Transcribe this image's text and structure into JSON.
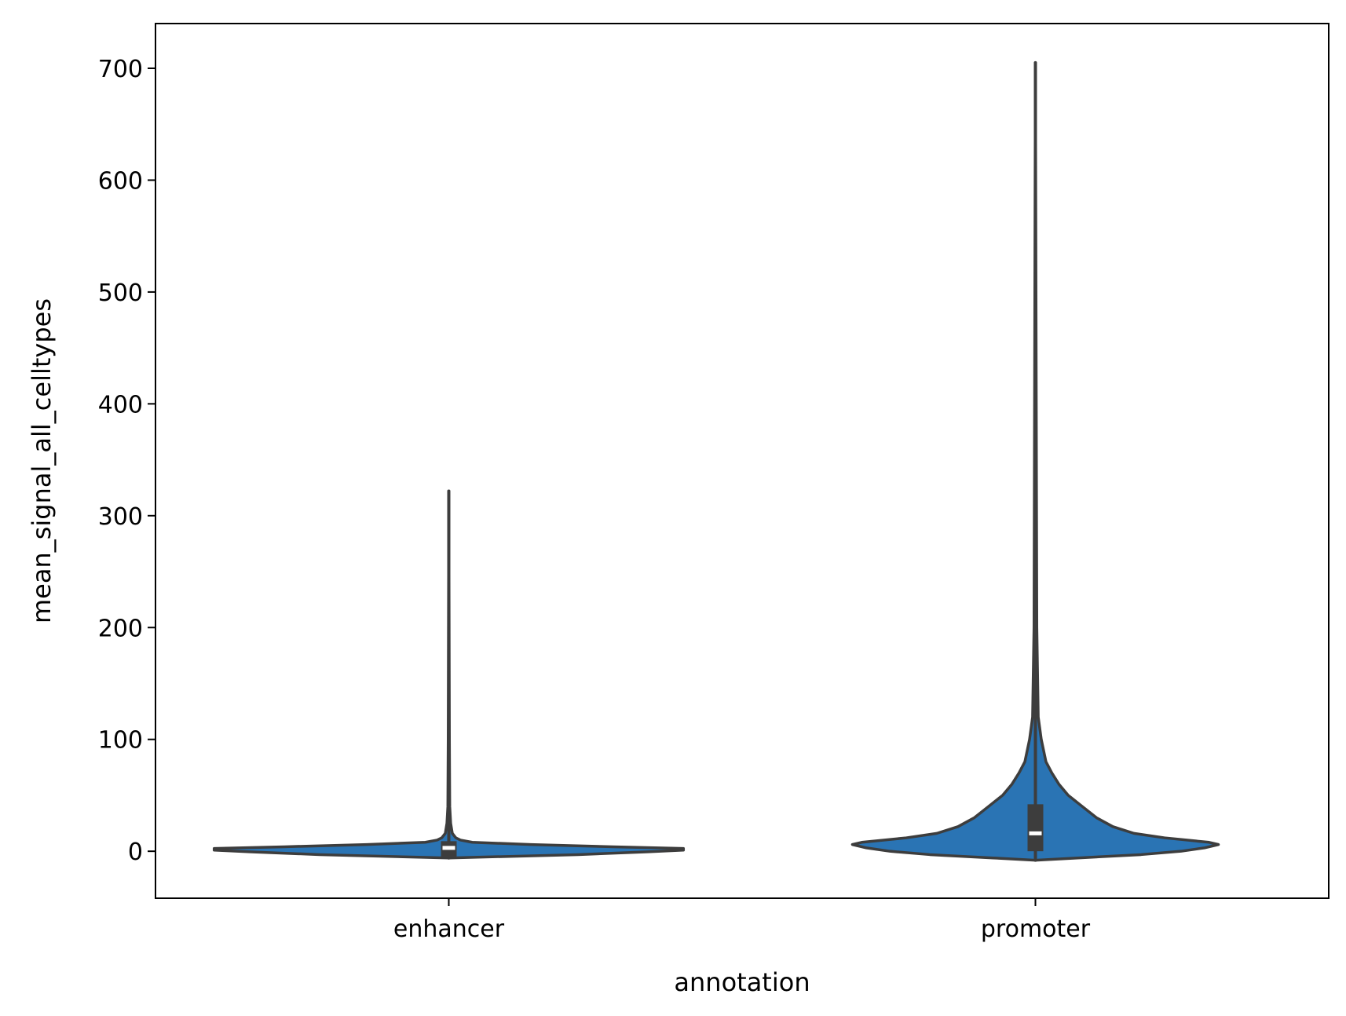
{
  "chart_data": {
    "type": "violin",
    "title": "",
    "xlabel": "annotation",
    "ylabel": "mean_signal_all_celltypes",
    "categories": [
      "enhancer",
      "promoter"
    ],
    "ylim": [
      -42,
      740
    ],
    "yticks": [
      0,
      100,
      200,
      300,
      400,
      500,
      600,
      700
    ],
    "grid": false,
    "colors": {
      "fill": "#2a74b4",
      "stroke": "#3d3d3d",
      "median": "#ffffff",
      "frame": "#000000"
    },
    "violins": [
      {
        "category": "enhancer",
        "min": -6,
        "max": 322,
        "q1": -6,
        "median": 3,
        "q3": 9,
        "profile": [
          [
            -6,
            0.0
          ],
          [
            -3,
            0.55
          ],
          [
            -0.5,
            0.85
          ],
          [
            1,
            1.0
          ],
          [
            2.5,
            1.0
          ],
          [
            4,
            0.7
          ],
          [
            6,
            0.35
          ],
          [
            8,
            0.1
          ],
          [
            10,
            0.05
          ],
          [
            12,
            0.03
          ],
          [
            16,
            0.015
          ],
          [
            25,
            0.008
          ],
          [
            40,
            0.004
          ],
          [
            100,
            0.0025
          ],
          [
            322,
            0.0
          ]
        ]
      },
      {
        "category": "promoter",
        "min": -8,
        "max": 705,
        "q1": 0,
        "median": 16,
        "q3": 42,
        "profile": [
          [
            -8,
            0.0
          ],
          [
            -6,
            0.18
          ],
          [
            -3,
            0.45
          ],
          [
            0,
            0.62
          ],
          [
            3,
            0.72
          ],
          [
            6,
            0.78
          ],
          [
            8,
            0.74
          ],
          [
            12,
            0.55
          ],
          [
            16,
            0.42
          ],
          [
            22,
            0.33
          ],
          [
            30,
            0.26
          ],
          [
            40,
            0.2
          ],
          [
            50,
            0.14
          ],
          [
            60,
            0.1
          ],
          [
            70,
            0.07
          ],
          [
            80,
            0.045
          ],
          [
            100,
            0.025
          ],
          [
            120,
            0.012
          ],
          [
            200,
            0.006
          ],
          [
            705,
            0.0
          ]
        ]
      }
    ]
  }
}
